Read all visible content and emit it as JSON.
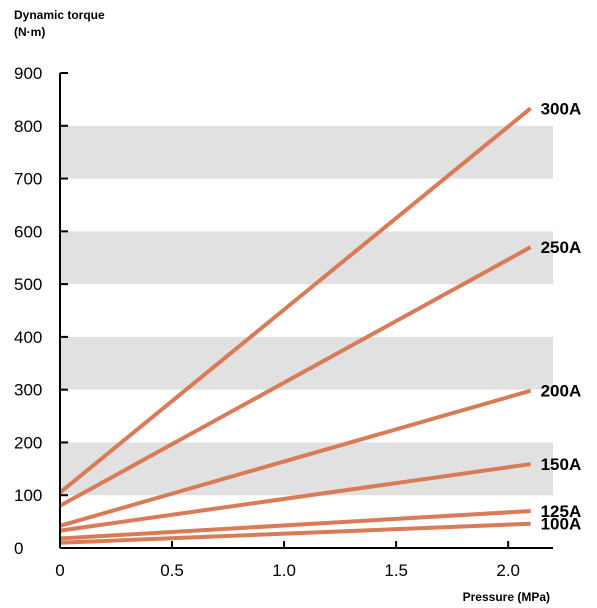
{
  "chart_data": {
    "type": "line",
    "title": "",
    "ylabel_line1": "Dynamic torque",
    "ylabel_line2": "(N·m)",
    "xlabel": "Pressure (MPa)",
    "xlim": [
      0,
      2.2
    ],
    "ylim": [
      0,
      900
    ],
    "x_ticks": [
      "0",
      "0.5",
      "1.0",
      "1.5",
      "2.0"
    ],
    "y_ticks": [
      "0",
      "100",
      "200",
      "300",
      "400",
      "500",
      "600",
      "700",
      "800",
      "900"
    ],
    "grid_bands": [
      [
        100,
        200
      ],
      [
        300,
        400
      ],
      [
        500,
        600
      ],
      [
        700,
        800
      ]
    ],
    "grid_band_color": "#e1e1e2",
    "line_color": "#d97b56",
    "series": [
      {
        "name": "300A",
        "x": [
          0,
          2.1
        ],
        "y": [
          105,
          833
        ]
      },
      {
        "name": "250A",
        "x": [
          0,
          2.1
        ],
        "y": [
          80,
          570
        ]
      },
      {
        "name": "200A",
        "x": [
          0,
          2.1
        ],
        "y": [
          42,
          298
        ]
      },
      {
        "name": "150A",
        "x": [
          0,
          2.1
        ],
        "y": [
          33,
          159
        ]
      },
      {
        "name": "125A",
        "x": [
          0,
          2.1
        ],
        "y": [
          18,
          70
        ]
      },
      {
        "name": "100A",
        "x": [
          0,
          2.1
        ],
        "y": [
          10,
          46
        ]
      }
    ]
  }
}
